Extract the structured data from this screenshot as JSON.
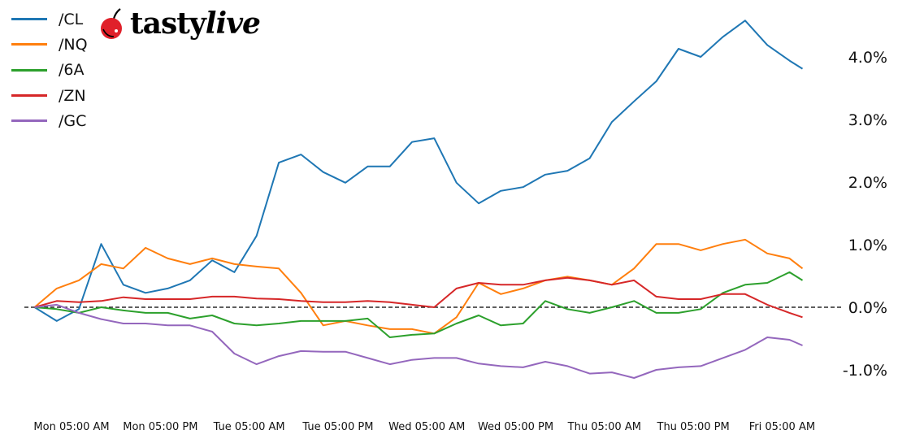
{
  "logo": {
    "text_main": "tasty",
    "text_italic": "live",
    "cherry_color": "#e0202a"
  },
  "chart_data": {
    "type": "line",
    "title": "",
    "xlabel": "",
    "ylabel": "",
    "y_axis_side": "right",
    "ylim": [
      -1.58,
      4.91
    ],
    "y_ticks": [
      -1,
      0,
      1,
      2,
      3,
      4
    ],
    "y_tick_labels": [
      "-1.0%",
      "0.0%",
      "1.0%",
      "2.0%",
      "3.0%",
      "4.0%"
    ],
    "x_ticks": [
      "Mon 05:00",
      "Mon 17:00",
      "Tue 05:00",
      "Tue 17:00",
      "Wed 05:00",
      "Wed 17:00",
      "Thu 05:00",
      "Thu 17:00",
      "Fri 05:00"
    ],
    "x_tick_labels": [
      "Mon 05:00 AM",
      "Mon 05:00 PM",
      "Tue 05:00 AM",
      "Tue 05:00 PM",
      "Wed 05:00 AM",
      "Wed 05:00 PM",
      "Thu 05:00 AM",
      "Thu 05:00 PM",
      "Fri 05:00 AM"
    ],
    "zero_line": "dashed black",
    "grid": false,
    "legend_position": "top-left",
    "x": [
      "Mon 00:00",
      "Mon 03:00",
      "Mon 06:00",
      "Mon 09:00",
      "Mon 12:00",
      "Mon 15:00",
      "Mon 18:00",
      "Mon 21:00",
      "Tue 00:00",
      "Tue 03:00",
      "Tue 06:00",
      "Tue 09:00",
      "Tue 12:00",
      "Tue 15:00",
      "Tue 18:00",
      "Tue 21:00",
      "Wed 00:00",
      "Wed 03:00",
      "Wed 06:00",
      "Wed 09:00",
      "Wed 12:00",
      "Wed 15:00",
      "Wed 18:00",
      "Wed 21:00",
      "Thu 00:00",
      "Thu 03:00",
      "Thu 06:00",
      "Thu 09:00",
      "Thu 12:00",
      "Thu 15:00",
      "Thu 18:00",
      "Thu 21:00",
      "Fri 00:00",
      "Fri 03:00",
      "Fri 06:00",
      "Fri 07:45"
    ],
    "series": [
      {
        "name": "/CL",
        "color": "#1f77b4",
        "values": [
          0,
          -0.22,
          -0.03,
          1.01,
          0.36,
          0.23,
          0.3,
          0.43,
          0.75,
          0.56,
          1.14,
          2.31,
          2.44,
          2.16,
          1.99,
          2.25,
          2.25,
          2.64,
          2.7,
          1.99,
          1.66,
          1.86,
          1.92,
          2.12,
          2.18,
          2.38,
          2.96,
          3.29,
          3.61,
          4.13,
          4.0,
          4.32,
          4.58,
          4.19,
          3.94,
          3.81
        ]
      },
      {
        "name": "/NQ",
        "color": "#ff7f0e",
        "values": [
          0,
          0.3,
          0.43,
          0.69,
          0.62,
          0.95,
          0.78,
          0.69,
          0.78,
          0.69,
          0.65,
          0.62,
          0.23,
          -0.29,
          -0.22,
          -0.29,
          -0.35,
          -0.35,
          -0.42,
          -0.16,
          0.39,
          0.21,
          0.3,
          0.43,
          0.49,
          0.43,
          0.36,
          0.62,
          1.01,
          1.01,
          0.91,
          1.01,
          1.08,
          0.86,
          0.78,
          0.62
        ]
      },
      {
        "name": "/6A",
        "color": "#2ca02c",
        "values": [
          0,
          -0.03,
          -0.09,
          0,
          -0.05,
          -0.09,
          -0.09,
          -0.18,
          -0.13,
          -0.26,
          -0.29,
          -0.26,
          -0.22,
          -0.22,
          -0.22,
          -0.18,
          -0.48,
          -0.44,
          -0.42,
          -0.26,
          -0.13,
          -0.29,
          -0.26,
          0.1,
          -0.03,
          -0.09,
          0,
          0.1,
          -0.09,
          -0.09,
          -0.03,
          0.23,
          0.36,
          0.39,
          0.56,
          0.43
        ]
      },
      {
        "name": "/ZN",
        "color": "#d62728",
        "values": [
          0,
          0.1,
          0.08,
          0.1,
          0.16,
          0.13,
          0.13,
          0.13,
          0.17,
          0.17,
          0.14,
          0.13,
          0.1,
          0.08,
          0.08,
          0.1,
          0.08,
          0.04,
          0,
          0.3,
          0.39,
          0.36,
          0.36,
          0.43,
          0.47,
          0.43,
          0.36,
          0.43,
          0.17,
          0.13,
          0.13,
          0.21,
          0.21,
          0.04,
          -0.09,
          -0.16
        ]
      },
      {
        "name": "/GC",
        "color": "#9467bd",
        "values": [
          0,
          0.04,
          -0.09,
          -0.19,
          -0.26,
          -0.26,
          -0.29,
          -0.29,
          -0.39,
          -0.74,
          -0.91,
          -0.78,
          -0.7,
          -0.71,
          -0.71,
          -0.81,
          -0.91,
          -0.84,
          -0.81,
          -0.81,
          -0.9,
          -0.94,
          -0.96,
          -0.87,
          -0.94,
          -1.06,
          -1.04,
          -1.13,
          -1.0,
          -0.96,
          -0.94,
          -0.81,
          -0.68,
          -0.48,
          -0.52,
          -0.61
        ]
      }
    ]
  }
}
